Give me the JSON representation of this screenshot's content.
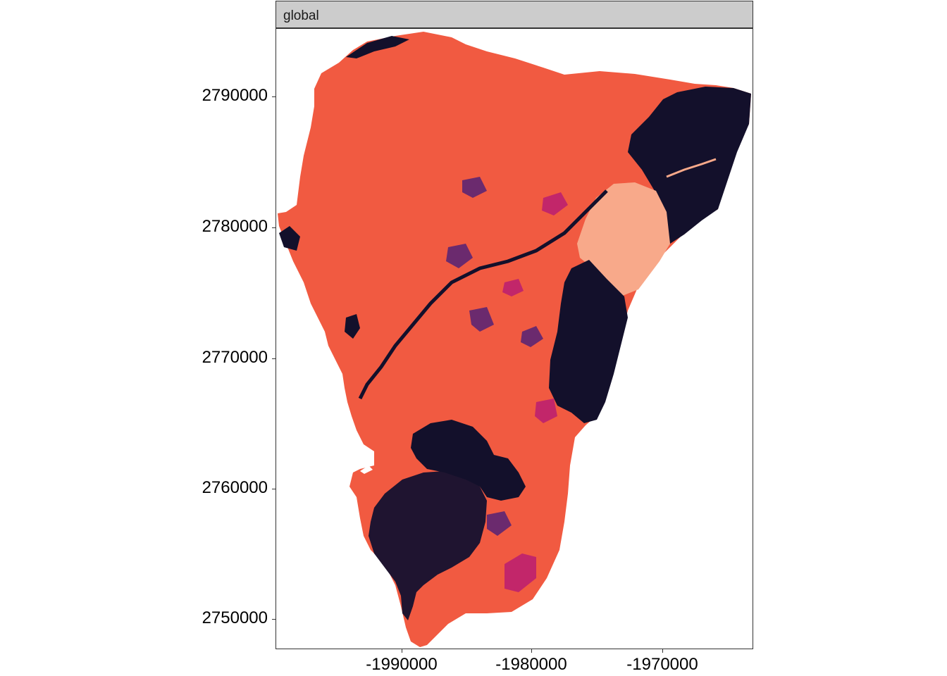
{
  "facet": {
    "label": "global"
  },
  "axes": {
    "y_ticks": [
      "2790000",
      "2780000",
      "2770000",
      "2760000",
      "2750000"
    ],
    "x_ticks": [
      "-1990000",
      "-1980000",
      "-1970000"
    ]
  },
  "colors": {
    "dominant": "#f15a41",
    "dark": "#13102b",
    "dark_alt": "#1f1430",
    "purple": "#6b2a6e",
    "magenta": "#c2266a",
    "light": "#f8a98a"
  },
  "legend": {
    "shown": false
  }
}
